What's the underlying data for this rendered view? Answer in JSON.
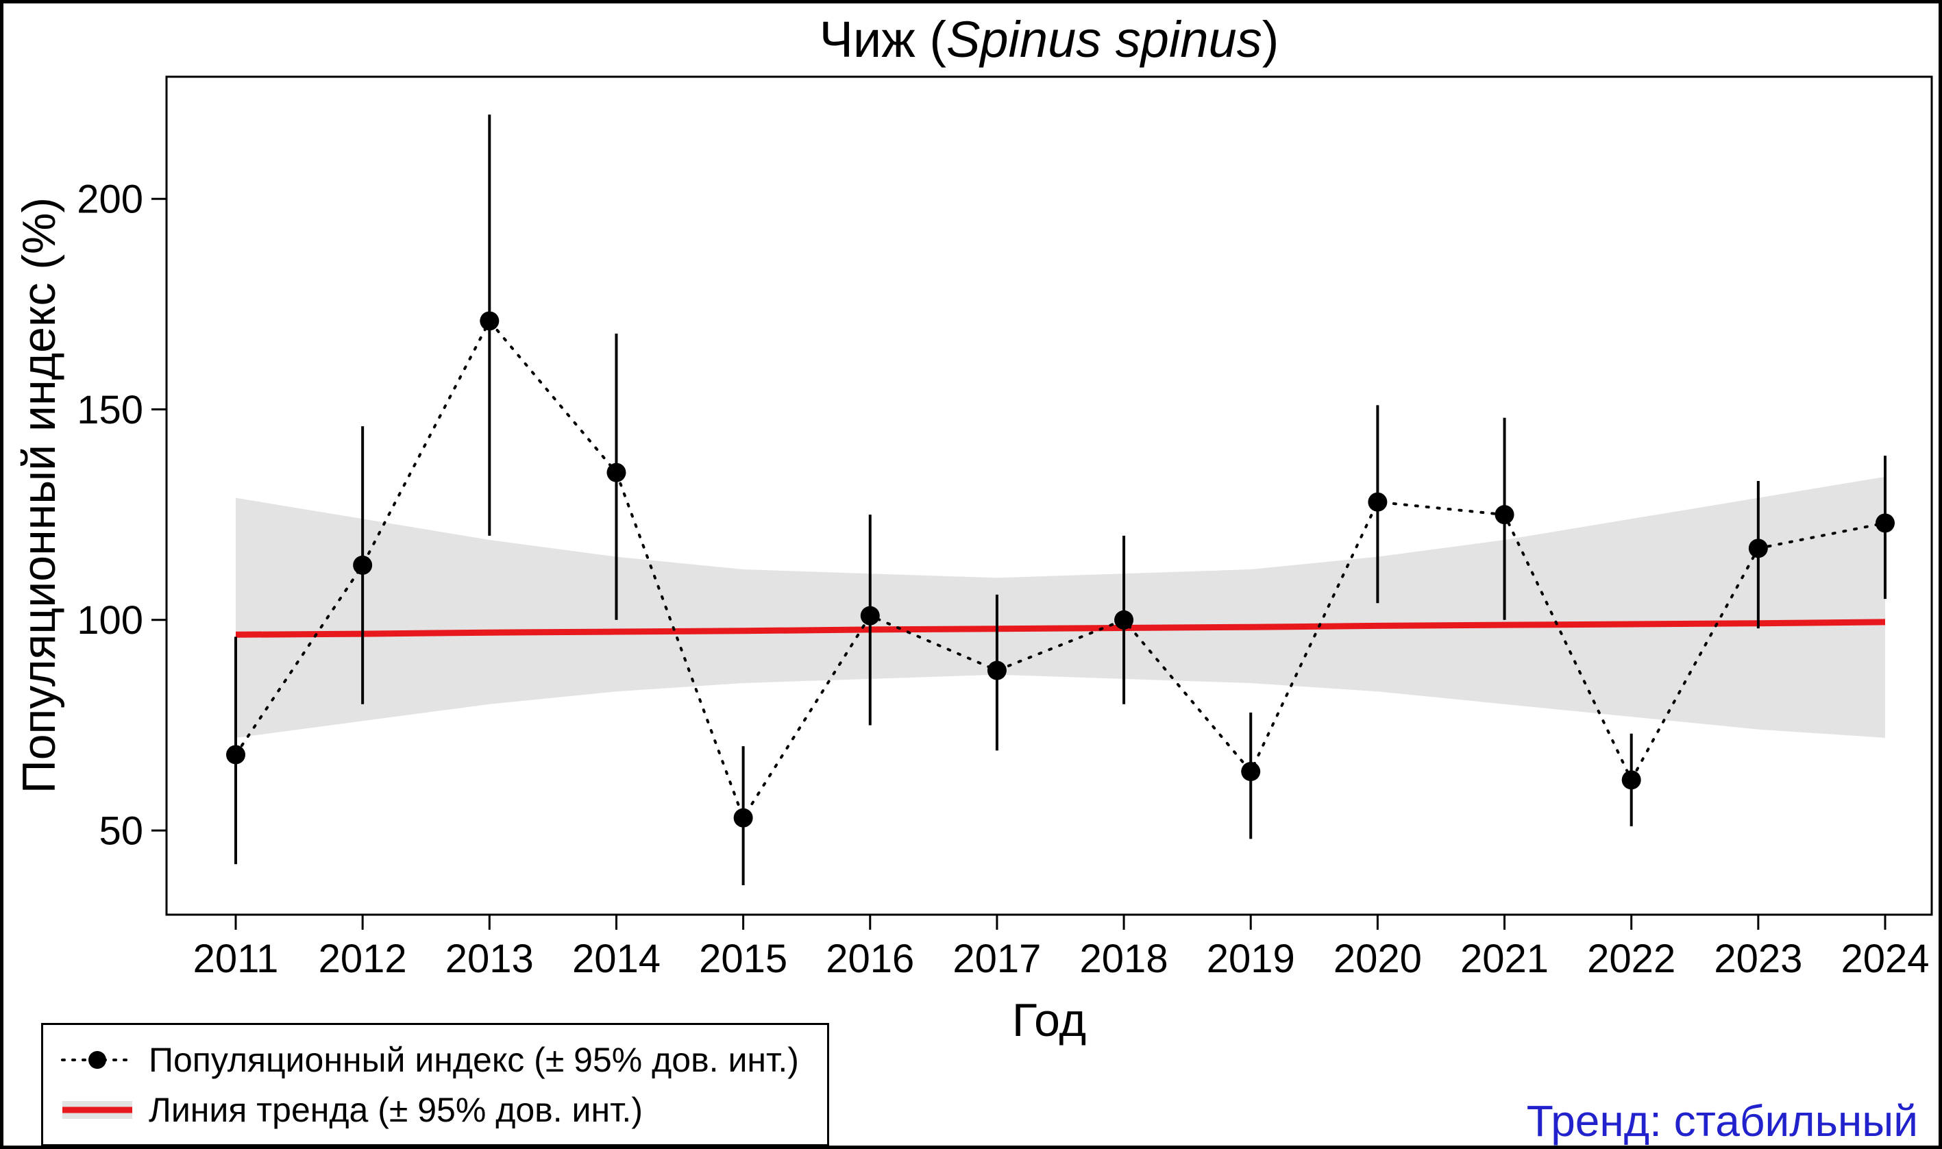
{
  "title": {
    "prefix": "Чиж (",
    "species_italic": "Spinus spinus",
    "suffix": ")"
  },
  "axes": {
    "x_label": "Год",
    "y_label": "Популяционный индекс (%)"
  },
  "legend": {
    "items": [
      {
        "label": "Популяционный индекс (± 95% дов. инт.)"
      },
      {
        "label": "Линия тренда (± 95% дов. инт.)"
      }
    ]
  },
  "annotation": {
    "text": "Тренд: стабильный"
  },
  "colors": {
    "point": "#000000",
    "index_line": "#000000",
    "error_bar": "#000000",
    "trend_line": "#e8191c",
    "confidence_band": "#e3e3e3",
    "trend_text": "#2222cc",
    "frame": "#000000"
  },
  "chart_data": {
    "type": "line",
    "title": "Чиж (Spinus spinus)",
    "xlabel": "Год",
    "ylabel": "Популяционный индекс (%)",
    "x": [
      2011,
      2012,
      2013,
      2014,
      2015,
      2016,
      2017,
      2018,
      2019,
      2020,
      2021,
      2022,
      2023,
      2024
    ],
    "ylim": [
      30,
      229
    ],
    "yticks": [
      50,
      100,
      150,
      200
    ],
    "grid": false,
    "legend_position": "bottom-left",
    "series": [
      {
        "name": "Популяционный индекс (± 95% дов. инт.)",
        "type": "points-with-error-bars",
        "values": [
          68,
          113,
          171,
          135,
          53,
          101,
          88,
          100,
          64,
          128,
          125,
          62,
          117,
          123
        ],
        "ci_lower": [
          42,
          80,
          120,
          100,
          37,
          75,
          69,
          80,
          48,
          104,
          100,
          51,
          98,
          105
        ],
        "ci_upper": [
          96,
          146,
          220,
          168,
          70,
          125,
          106,
          120,
          78,
          151,
          148,
          73,
          133,
          139
        ]
      },
      {
        "name": "Линия тренда (± 95% дов. инт.)",
        "type": "trend-line-with-band",
        "values": [
          96.5,
          96.7,
          97.0,
          97.2,
          97.4,
          97.7,
          97.9,
          98.1,
          98.3,
          98.6,
          98.8,
          99.0,
          99.2,
          99.5
        ],
        "band_lower": [
          72,
          76,
          80,
          83,
          85,
          86,
          87,
          86,
          85,
          83,
          80,
          77,
          74,
          72
        ],
        "band_upper": [
          129,
          124,
          119,
          115,
          112,
          111,
          110,
          111,
          112,
          115,
          119,
          124,
          129,
          134
        ]
      }
    ]
  }
}
